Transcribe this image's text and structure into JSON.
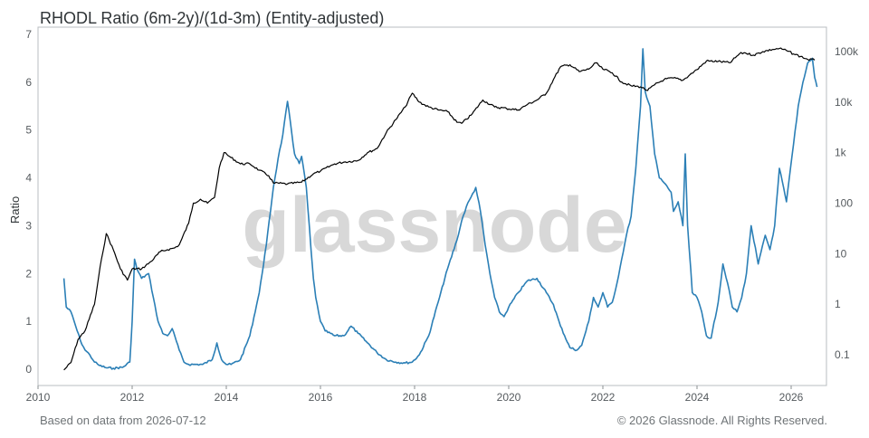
{
  "header": {
    "title": "RHODL Ratio (6m-2y)/(1d-3m) (Entity-adjusted)"
  },
  "footer": {
    "left": "Based on data from 2026-07-12",
    "right": "© 2026 Glassnode. All Rights Reserved."
  },
  "watermark": "glassnode",
  "colors": {
    "ratio_line": "#2b7fb6",
    "price_line": "#000000",
    "axis": "#555a5e",
    "grid": "#ececec"
  },
  "chart_data": {
    "type": "line",
    "title": "RHODL Ratio (6m-2y)/(1d-3m) (Entity-adjusted)",
    "xlabel": "",
    "ylabel": "Ratio",
    "x_axis": {
      "type": "time",
      "range": [
        2010,
        2026.75
      ],
      "ticks": [
        2010,
        2012,
        2014,
        2016,
        2018,
        2020,
        2022,
        2024,
        2026
      ],
      "tick_labels": [
        "2010",
        "2012",
        "2014",
        "2016",
        "2018",
        "2020",
        "2022",
        "2024",
        "2026"
      ]
    },
    "y_axis_left": {
      "label": "Ratio",
      "range": [
        0,
        7
      ],
      "ticks": [
        0,
        1,
        2,
        3,
        4,
        5,
        6,
        7
      ],
      "tick_labels": [
        "0",
        "1",
        "2",
        "3",
        "4",
        "5",
        "6",
        "7"
      ]
    },
    "y_axis_right": {
      "scale": "log",
      "range": [
        0.02,
        150000
      ],
      "ticks": [
        0.1,
        1,
        10,
        100,
        1000,
        10000,
        100000
      ],
      "tick_labels": [
        "0.1",
        "1",
        "10",
        "100",
        "1k",
        "10k",
        "100k"
      ]
    },
    "grid": false,
    "series": [
      {
        "axis": "left",
        "color": "#2b7fb6",
        "x": [
          2010.55,
          2010.6,
          2010.7,
          2010.8,
          2010.9,
          2011.0,
          2011.1,
          2011.2,
          2011.3,
          2011.45,
          2011.6,
          2011.8,
          2011.95,
          2012.0,
          2012.05,
          2012.1,
          2012.2,
          2012.35,
          2012.45,
          2012.55,
          2012.65,
          2012.75,
          2012.85,
          2013.0,
          2013.1,
          2013.2,
          2013.3,
          2013.5,
          2013.7,
          2013.8,
          2013.9,
          2014.0,
          2014.1,
          2014.3,
          2014.5,
          2014.7,
          2014.85,
          2015.0,
          2015.1,
          2015.2,
          2015.3,
          2015.45,
          2015.55,
          2015.6,
          2015.7,
          2015.8,
          2015.85,
          2015.9,
          2016.0,
          2016.1,
          2016.3,
          2016.5,
          2016.65,
          2016.8,
          2017.0,
          2017.2,
          2017.4,
          2017.6,
          2017.8,
          2017.95,
          2018.1,
          2018.3,
          2018.5,
          2018.7,
          2018.9,
          2019.0,
          2019.1,
          2019.2,
          2019.3,
          2019.4,
          2019.5,
          2019.6,
          2019.7,
          2019.8,
          2019.9,
          2020.0,
          2020.2,
          2020.4,
          2020.6,
          2020.8,
          2020.95,
          2021.1,
          2021.3,
          2021.45,
          2021.55,
          2021.7,
          2021.8,
          2021.9,
          2022.0,
          2022.1,
          2022.2,
          2022.3,
          2022.4,
          2022.5,
          2022.6,
          2022.7,
          2022.8,
          2022.85,
          2022.9,
          2023.0,
          2023.1,
          2023.2,
          2023.3,
          2023.45,
          2023.5,
          2023.6,
          2023.7,
          2023.75,
          2023.8,
          2023.9,
          2024.0,
          2024.1,
          2024.2,
          2024.3,
          2024.45,
          2024.55,
          2024.65,
          2024.75,
          2024.85,
          2024.95,
          2025.05,
          2025.15,
          2025.3,
          2025.45,
          2025.55,
          2025.65,
          2025.75,
          2025.9,
          2026.05,
          2026.15,
          2026.25,
          2026.35,
          2026.45,
          2026.5,
          2026.55
        ],
        "y": [
          1.9,
          1.3,
          1.2,
          0.9,
          0.6,
          0.4,
          0.3,
          0.15,
          0.08,
          0.03,
          0.02,
          0.04,
          0.15,
          1.0,
          2.3,
          2.1,
          1.9,
          2.0,
          1.5,
          1.0,
          0.75,
          0.7,
          0.85,
          0.4,
          0.15,
          0.1,
          0.1,
          0.1,
          0.2,
          0.55,
          0.2,
          0.1,
          0.1,
          0.2,
          0.7,
          1.6,
          2.6,
          3.8,
          4.4,
          4.9,
          5.6,
          4.5,
          4.3,
          4.45,
          3.8,
          2.5,
          1.9,
          1.5,
          1.0,
          0.8,
          0.7,
          0.7,
          0.9,
          0.75,
          0.55,
          0.35,
          0.2,
          0.15,
          0.13,
          0.15,
          0.3,
          0.7,
          1.4,
          2.1,
          2.7,
          3.1,
          3.4,
          3.6,
          3.8,
          3.3,
          2.6,
          2.0,
          1.5,
          1.2,
          1.1,
          1.3,
          1.6,
          1.85,
          1.9,
          1.6,
          1.35,
          0.9,
          0.45,
          0.4,
          0.5,
          1.0,
          1.5,
          1.3,
          1.6,
          1.3,
          1.4,
          1.8,
          2.3,
          2.8,
          3.2,
          4.2,
          5.5,
          6.7,
          5.8,
          5.5,
          4.5,
          4.0,
          3.9,
          3.7,
          3.3,
          3.5,
          3.0,
          4.5,
          3.0,
          1.6,
          1.5,
          1.2,
          0.7,
          0.65,
          1.4,
          2.2,
          1.8,
          1.3,
          1.2,
          1.5,
          2.0,
          3.0,
          2.2,
          2.8,
          2.5,
          3.0,
          4.2,
          3.5,
          4.7,
          5.5,
          6.0,
          6.4,
          6.5,
          6.1,
          5.9
        ]
      },
      {
        "axis": "right",
        "color": "#000000",
        "x": [
          2010.55,
          2010.7,
          2010.85,
          2011.0,
          2011.2,
          2011.35,
          2011.45,
          2011.6,
          2011.75,
          2011.9,
          2012.0,
          2012.2,
          2012.4,
          2012.6,
          2012.75,
          2012.9,
          2013.0,
          2013.2,
          2013.3,
          2013.45,
          2013.6,
          2013.75,
          2013.85,
          2013.95,
          2014.1,
          2014.3,
          2014.5,
          2014.7,
          2014.9,
          2015.0,
          2015.3,
          2015.6,
          2015.85,
          2016.0,
          2016.3,
          2016.5,
          2016.8,
          2017.0,
          2017.2,
          2017.4,
          2017.6,
          2017.8,
          2017.95,
          2018.1,
          2018.3,
          2018.5,
          2018.7,
          2018.9,
          2019.0,
          2019.2,
          2019.45,
          2019.7,
          2019.95,
          2020.2,
          2020.4,
          2020.6,
          2020.8,
          2020.95,
          2021.1,
          2021.3,
          2021.5,
          2021.7,
          2021.85,
          2022.0,
          2022.2,
          2022.4,
          2022.6,
          2022.8,
          2022.95,
          2023.1,
          2023.3,
          2023.5,
          2023.7,
          2023.85,
          2024.0,
          2024.2,
          2024.45,
          2024.7,
          2024.9,
          2025.0,
          2025.2,
          2025.4,
          2025.6,
          2025.75,
          2025.9,
          2026.05,
          2026.2,
          2026.35,
          2026.5
        ],
        "y": [
          0.05,
          0.07,
          0.2,
          0.3,
          1.0,
          8,
          25,
          12,
          5,
          3,
          5,
          5,
          7,
          11,
          12,
          13,
          15,
          40,
          100,
          120,
          100,
          130,
          500,
          1000,
          800,
          600,
          600,
          450,
          350,
          250,
          240,
          260,
          380,
          430,
          600,
          650,
          700,
          1000,
          1200,
          2500,
          4500,
          8000,
          15000,
          10000,
          8000,
          7000,
          6500,
          4000,
          3800,
          5500,
          11000,
          8000,
          7500,
          7000,
          9000,
          11000,
          15000,
          28000,
          50000,
          55000,
          40000,
          45000,
          60000,
          45000,
          38000,
          25000,
          21000,
          20000,
          17000,
          22000,
          28000,
          30000,
          27000,
          35000,
          44000,
          65000,
          64000,
          60000,
          90000,
          95000,
          85000,
          100000,
          110000,
          115000,
          105000,
          90000,
          80000,
          70000,
          68000
        ]
      }
    ]
  }
}
